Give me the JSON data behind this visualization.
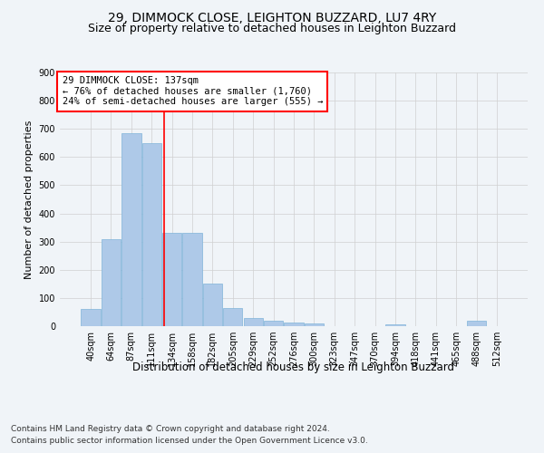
{
  "title_line1": "29, DIMMOCK CLOSE, LEIGHTON BUZZARD, LU7 4RY",
  "title_line2": "Size of property relative to detached houses in Leighton Buzzard",
  "xlabel": "Distribution of detached houses by size in Leighton Buzzard",
  "ylabel": "Number of detached properties",
  "footer_line1": "Contains HM Land Registry data © Crown copyright and database right 2024.",
  "footer_line2": "Contains public sector information licensed under the Open Government Licence v3.0.",
  "bar_labels": [
    "40sqm",
    "64sqm",
    "87sqm",
    "111sqm",
    "134sqm",
    "158sqm",
    "182sqm",
    "205sqm",
    "229sqm",
    "252sqm",
    "276sqm",
    "300sqm",
    "323sqm",
    "347sqm",
    "370sqm",
    "394sqm",
    "418sqm",
    "441sqm",
    "465sqm",
    "488sqm",
    "512sqm"
  ],
  "bar_values": [
    60,
    310,
    685,
    650,
    330,
    330,
    150,
    65,
    30,
    18,
    12,
    10,
    0,
    0,
    0,
    8,
    0,
    0,
    0,
    18,
    0
  ],
  "bar_color": "#aec9e8",
  "bar_edgecolor": "#7fb3d9",
  "annotation_line1": "29 DIMMOCK CLOSE: 137sqm",
  "annotation_line2": "← 76% of detached houses are smaller (1,760)",
  "annotation_line3": "24% of semi-detached houses are larger (555) →",
  "annotation_box_facecolor": "white",
  "annotation_box_edgecolor": "red",
  "vline_x": 3.6,
  "vline_color": "red",
  "ylim": [
    0,
    900
  ],
  "yticks": [
    0,
    100,
    200,
    300,
    400,
    500,
    600,
    700,
    800,
    900
  ],
  "grid_color": "#d0d0d0",
  "background_color": "#f0f4f8",
  "plot_bg_color": "#f0f4f8",
  "title_fontsize": 10,
  "subtitle_fontsize": 9,
  "tick_fontsize": 7,
  "ylabel_fontsize": 8,
  "xlabel_fontsize": 8.5,
  "annotation_fontsize": 7.5,
  "footer_fontsize": 6.5
}
